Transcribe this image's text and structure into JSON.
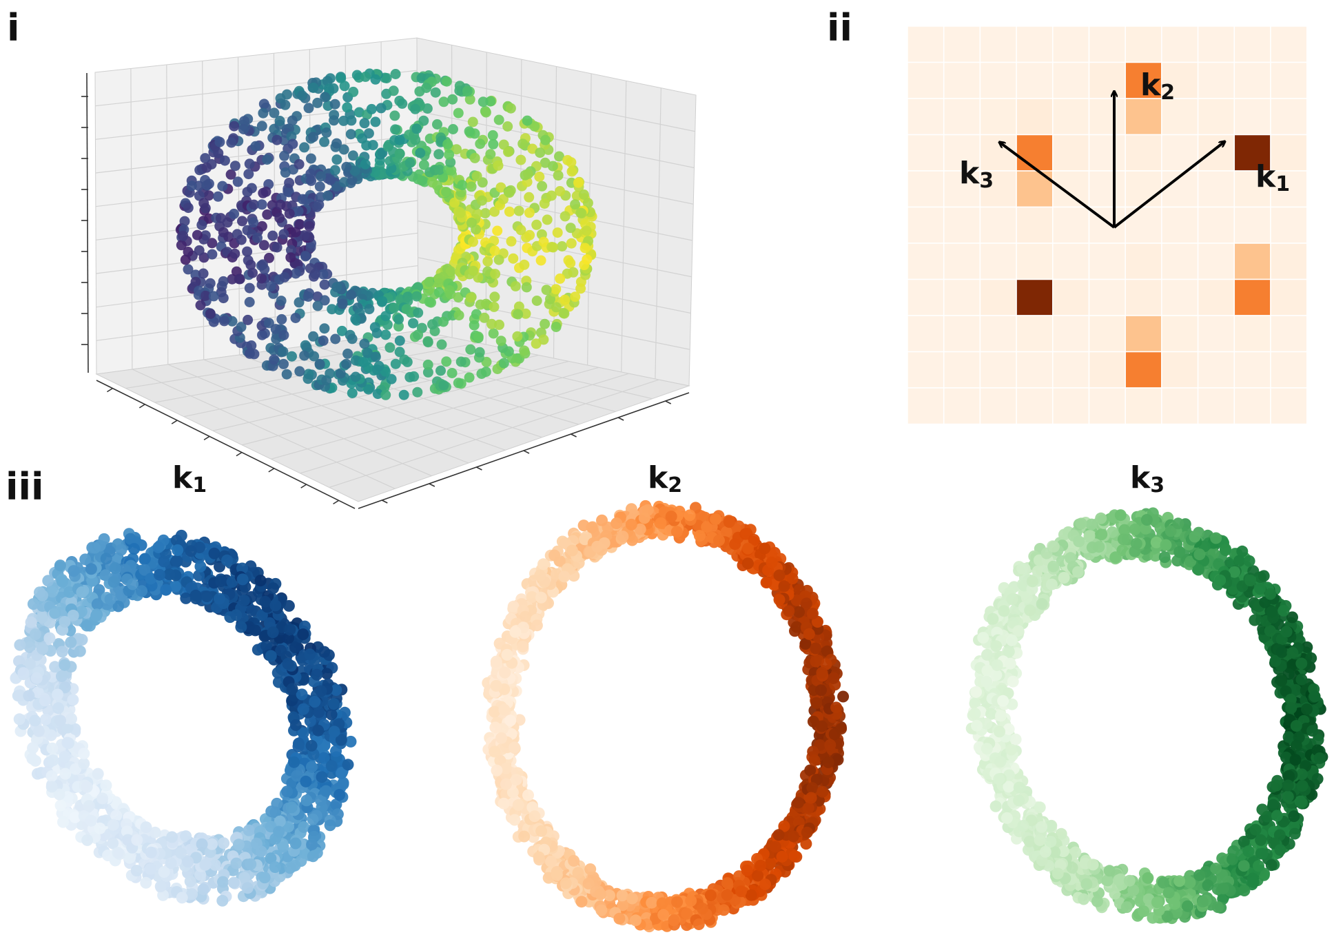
{
  "panels": {
    "i": "i",
    "ii": "ii",
    "iii": "iii"
  },
  "labels": {
    "k1": {
      "base": "k",
      "sub": "1"
    },
    "k2": {
      "base": "k",
      "sub": "2"
    },
    "k3": {
      "base": "k",
      "sub": "3"
    }
  },
  "chart_data": [
    {
      "type": "scatter",
      "panel": "i",
      "description_3d": "torus point cloud",
      "colormap": "viridis",
      "grid": true,
      "point_count": 1200
    },
    {
      "type": "heatmap",
      "panel": "ii",
      "colormap": "Oranges",
      "grid": true,
      "rows": 11,
      "cols": 11,
      "values": [
        [
          0.02,
          0.02,
          0.02,
          0.02,
          0.02,
          0.02,
          0.03,
          0.02,
          0.02,
          0.02,
          0.02
        ],
        [
          0.02,
          0.02,
          0.02,
          0.02,
          0.02,
          0.04,
          0.55,
          0.04,
          0.02,
          0.02,
          0.02
        ],
        [
          0.02,
          0.02,
          0.03,
          0.06,
          0.03,
          0.03,
          0.3,
          0.03,
          0.03,
          0.02,
          0.02
        ],
        [
          0.02,
          0.02,
          0.04,
          0.55,
          0.04,
          0.02,
          0.04,
          0.02,
          0.04,
          1.0,
          0.04
        ],
        [
          0.02,
          0.02,
          0.04,
          0.3,
          0.03,
          0.02,
          0.03,
          0.02,
          0.02,
          0.03,
          0.02
        ],
        [
          0.02,
          0.02,
          0.02,
          0.04,
          0.02,
          0.02,
          0.02,
          0.02,
          0.02,
          0.02,
          0.02
        ],
        [
          0.02,
          0.02,
          0.02,
          0.03,
          0.02,
          0.02,
          0.04,
          0.02,
          0.02,
          0.3,
          0.04
        ],
        [
          0.02,
          0.02,
          0.04,
          1.0,
          0.04,
          0.02,
          0.04,
          0.02,
          0.04,
          0.55,
          0.04
        ],
        [
          0.02,
          0.02,
          0.02,
          0.03,
          0.02,
          0.03,
          0.3,
          0.03,
          0.02,
          0.03,
          0.02
        ],
        [
          0.02,
          0.02,
          0.02,
          0.02,
          0.02,
          0.04,
          0.55,
          0.04,
          0.02,
          0.02,
          0.02
        ],
        [
          0.02,
          0.02,
          0.02,
          0.02,
          0.02,
          0.02,
          0.03,
          0.02,
          0.02,
          0.02,
          0.02
        ]
      ],
      "vectors": [
        {
          "name": "k1",
          "from": [
            6,
            5
          ],
          "to": [
            9,
            3
          ]
        },
        {
          "name": "k2",
          "from": [
            6,
            5
          ],
          "to": [
            6,
            1
          ]
        },
        {
          "name": "k3",
          "from": [
            6,
            5
          ],
          "to": [
            3,
            3
          ]
        }
      ]
    },
    {
      "type": "scatter",
      "panel": "iii",
      "title": "k1",
      "colormap": "Blues",
      "point_count": 1500
    },
    {
      "type": "scatter",
      "panel": "iii",
      "title": "k2",
      "colormap": "Oranges",
      "point_count": 1500
    },
    {
      "type": "scatter",
      "panel": "iii",
      "title": "k3",
      "colormap": "Greens",
      "point_count": 1500
    }
  ],
  "colors": {
    "viridis": [
      "#440154",
      "#3b528b",
      "#21918c",
      "#5ec962",
      "#fde725"
    ],
    "blues": [
      "#eef5fc",
      "#c6dbef",
      "#6baed6",
      "#2171b5",
      "#08306b"
    ],
    "oranges": [
      "#fff0e0",
      "#fdd0a2",
      "#fd8d3c",
      "#d94801",
      "#7f2704"
    ],
    "greens": [
      "#edf8e9",
      "#c7e9c0",
      "#74c476",
      "#238b45",
      "#00441b"
    ],
    "heat": [
      "#fff5eb",
      "#fdd0a2",
      "#fd8d3c",
      "#d94801",
      "#7f2704"
    ]
  }
}
